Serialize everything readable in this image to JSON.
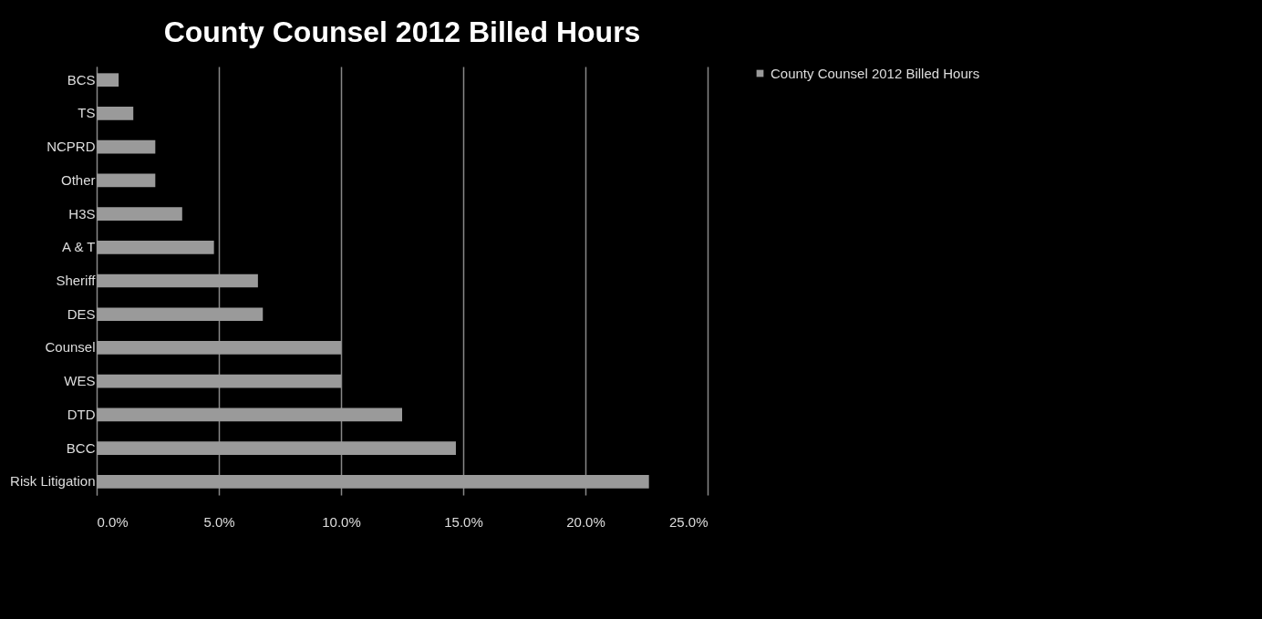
{
  "chart_data": {
    "type": "bar",
    "orientation": "horizontal",
    "title": "County Counsel 2012 Billed Hours",
    "categories": [
      "BCS",
      "TS",
      "NCPRD",
      "Other",
      "H3S",
      "A & T",
      "Sheriff",
      "DES",
      "Counsel",
      "WES",
      "DTD",
      "BCC",
      "Risk Litigation"
    ],
    "series": [
      {
        "name": "County Counsel 2012 Billed Hours",
        "color": "#9a9a9a",
        "values": [
          0.9,
          1.5,
          2.4,
          2.4,
          3.5,
          4.8,
          6.6,
          6.8,
          10.0,
          10.0,
          12.5,
          14.7,
          22.6
        ]
      }
    ],
    "xlim": [
      0,
      25
    ],
    "xticks": [
      {
        "value": 0,
        "label": "0.0%"
      },
      {
        "value": 5,
        "label": "5.0%"
      },
      {
        "value": 10,
        "label": "10.0%"
      },
      {
        "value": 15,
        "label": "15.0%"
      },
      {
        "value": 20,
        "label": "20.0%"
      },
      {
        "value": 25,
        "label": "25.0%"
      }
    ],
    "grid": "x",
    "legend": "right"
  }
}
